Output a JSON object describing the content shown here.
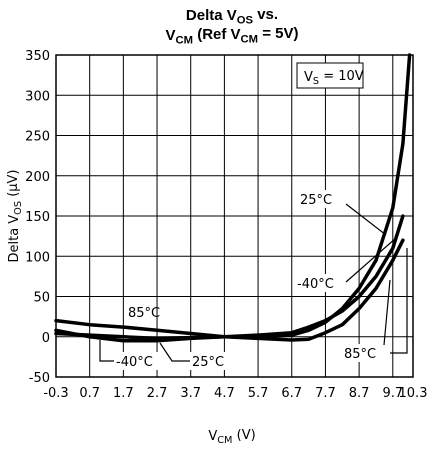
{
  "chart_data": {
    "type": "line",
    "title": [
      [
        "Delta V",
        "OS",
        " vs."
      ],
      [
        "V",
        "CM",
        " (Ref V",
        "CM",
        " = 5V)"
      ]
    ],
    "y_label": [
      "Delta V",
      "OS",
      " (μV)"
    ],
    "x_label": [
      "V",
      "CM",
      " (V)"
    ],
    "annotations": [
      [
        "V",
        "S",
        " = 10V"
      ],
      [
        "25°C"
      ],
      [
        "-40°C"
      ],
      [
        "85°C"
      ],
      [
        "85°C"
      ],
      [
        "-40°C"
      ],
      [
        "25°C"
      ]
    ],
    "x": [
      -0.3,
      0.7,
      1.7,
      2.7,
      3.7,
      4.7,
      5.7,
      6.7,
      7.2,
      7.7,
      8.2,
      8.7,
      9.2,
      9.7,
      10.0,
      10.2
    ],
    "series": [
      {
        "color": "#000000",
        "values": [
          8,
          0,
          -5,
          -5,
          -2,
          0,
          0,
          2,
          8,
          18,
          35,
          60,
          95,
          160,
          240,
          350
        ]
      },
      {
        "color": "#000000",
        "values": [
          4,
          2,
          0,
          -2,
          -1,
          0,
          2,
          5,
          12,
          20,
          32,
          50,
          75,
          110,
          150,
          null
        ]
      },
      {
        "color": "#000000",
        "values": [
          20,
          15,
          12,
          8,
          4,
          0,
          -2,
          -4,
          -3,
          5,
          15,
          35,
          60,
          95,
          120,
          null
        ]
      }
    ],
    "xlim": [
      -0.3,
      10.3
    ],
    "xticks": [
      -0.3,
      0.7,
      1.7,
      2.7,
      3.7,
      4.7,
      5.7,
      6.7,
      7.7,
      8.7,
      9.7,
      10.3
    ],
    "ylim": [
      -50,
      350
    ],
    "yticks": [
      -50,
      0,
      50,
      100,
      150,
      200,
      250,
      300,
      350
    ],
    "grid": true
  }
}
